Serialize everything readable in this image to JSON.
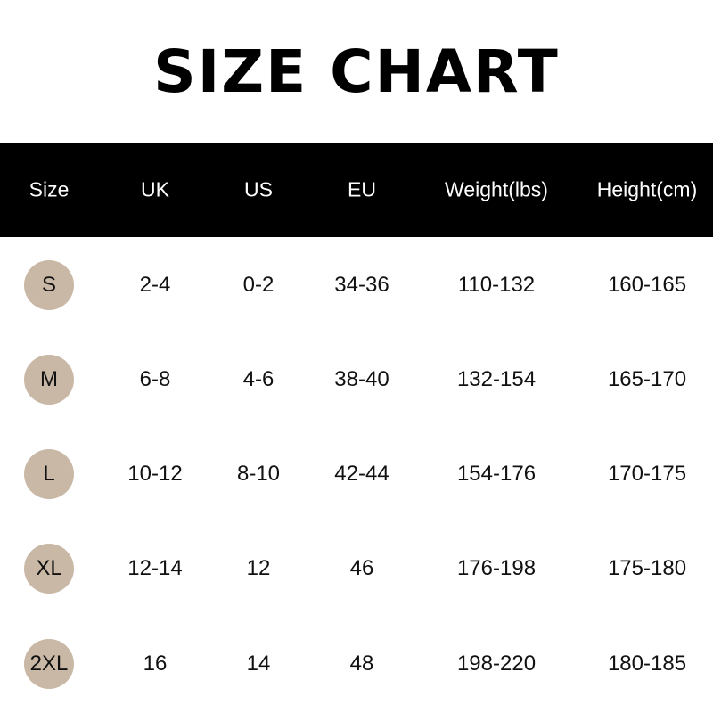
{
  "title": "SIZE CHART",
  "colors": {
    "header_bg": "#000000",
    "size_circle": "#c9b8a5"
  },
  "chart_data": {
    "type": "table",
    "title": "SIZE CHART",
    "columns": [
      "Size",
      "UK",
      "US",
      "EU",
      "Weight(lbs)",
      "Height(cm)"
    ],
    "rows": [
      [
        "S",
        "2-4",
        "0-2",
        "34-36",
        "110-132",
        "160-165"
      ],
      [
        "M",
        "6-8",
        "4-6",
        "38-40",
        "132-154",
        "165-170"
      ],
      [
        "L",
        "10-12",
        "8-10",
        "42-44",
        "154-176",
        "170-175"
      ],
      [
        "XL",
        "12-14",
        "12",
        "46",
        "176-198",
        "175-180"
      ],
      [
        "2XL",
        "16",
        "14",
        "48",
        "198-220",
        "180-185"
      ]
    ]
  }
}
